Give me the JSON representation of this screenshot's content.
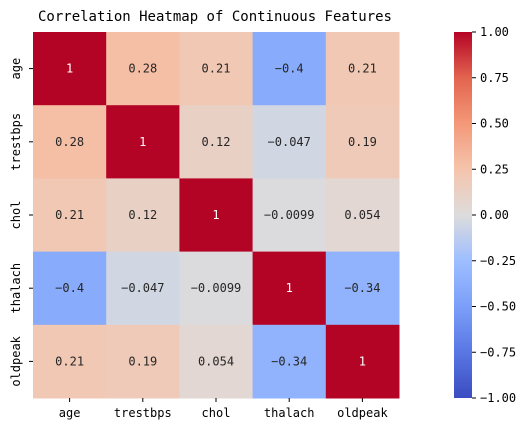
{
  "chart_data": {
    "type": "heatmap",
    "title": "Correlation Heatmap of Continuous Features",
    "xlabel": "",
    "ylabel": "",
    "x_categories": [
      "age",
      "trestbps",
      "chol",
      "thalach",
      "oldpeak"
    ],
    "y_categories": [
      "age",
      "trestbps",
      "chol",
      "thalach",
      "oldpeak"
    ],
    "values": [
      [
        1,
        0.28,
        0.21,
        -0.4,
        0.21
      ],
      [
        0.28,
        1,
        0.12,
        -0.047,
        0.19
      ],
      [
        0.21,
        0.12,
        1,
        -0.0099,
        0.054
      ],
      [
        -0.4,
        -0.047,
        -0.0099,
        1,
        -0.34
      ],
      [
        0.21,
        0.19,
        0.054,
        -0.34,
        1
      ]
    ],
    "cell_labels": [
      [
        "1",
        "0.28",
        "0.21",
        "−0.4",
        "0.21"
      ],
      [
        "0.28",
        "1",
        "0.12",
        "−0.047",
        "0.19"
      ],
      [
        "0.21",
        "0.12",
        "1",
        "−0.0099",
        "0.054"
      ],
      [
        "−0.4",
        "−0.047",
        "−0.0099",
        "1",
        "−0.34"
      ],
      [
        "0.21",
        "0.19",
        "0.054",
        "−0.34",
        "1"
      ]
    ],
    "colormap": "coolwarm",
    "vmin": -1,
    "vmax": 1,
    "colorbar_ticks": [
      1,
      0.75,
      0.5,
      0.25,
      0,
      -0.25,
      -0.5,
      -0.75,
      -1
    ],
    "colorbar_tick_labels": [
      "1.00",
      "0.75",
      "0.50",
      "0.25",
      "0.00",
      "−0.25",
      "−0.50",
      "−0.75",
      "−1.00"
    ]
  }
}
